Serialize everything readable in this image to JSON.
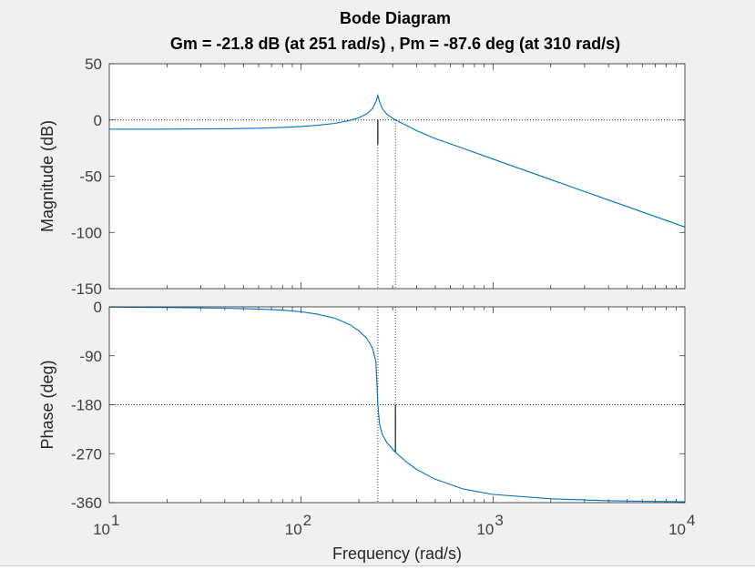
{
  "chart_data": {
    "type": "line",
    "title": "Bode Diagram",
    "subtitle": "Gm = -21.8 dB (at 251 rad/s) ,  Pm = -87.6 deg (at 310 rad/s)",
    "xlabel": "Frequency  (rad/s)",
    "xscale": "log",
    "xlim": [
      10,
      10000
    ],
    "x_ticks": [
      10,
      100,
      1000,
      10000
    ],
    "x_tick_labels": [
      {
        "base": "10",
        "exp": "1"
      },
      {
        "base": "10",
        "exp": "2"
      },
      {
        "base": "10",
        "exp": "3"
      },
      {
        "base": "10",
        "exp": "4"
      }
    ],
    "margins": {
      "gain_margin_db": -21.8,
      "gain_crossover_freq": 251,
      "phase_margin_deg": -87.6,
      "phase_crossover_freq": 310
    },
    "magnitude": {
      "ylabel": "Magnitude (dB)",
      "ylim": [
        -150,
        50
      ],
      "y_ticks": [
        50,
        0,
        -50,
        -100,
        -150
      ],
      "y_tick_labels": [
        "50",
        "0",
        "-50",
        "-100",
        "-150"
      ],
      "reference_line": 0,
      "color": "#0072BD",
      "points": [
        [
          10,
          -8.2
        ],
        [
          20,
          -8.1
        ],
        [
          40,
          -7.8
        ],
        [
          60,
          -7.3
        ],
        [
          80,
          -6.6
        ],
        [
          100,
          -5.8
        ],
        [
          120,
          -4.8
        ],
        [
          150,
          -3.0
        ],
        [
          180,
          -0.4
        ],
        [
          200,
          2.0
        ],
        [
          220,
          5.5
        ],
        [
          235,
          10.0
        ],
        [
          245,
          16.0
        ],
        [
          251,
          21.8
        ],
        [
          256,
          16.5
        ],
        [
          265,
          10.0
        ],
        [
          280,
          5.0
        ],
        [
          310,
          0.0
        ],
        [
          350,
          -4.5
        ],
        [
          400,
          -9.5
        ],
        [
          500,
          -16.5
        ],
        [
          700,
          -25.3
        ],
        [
          1000,
          -34.8
        ],
        [
          2000,
          -53.0
        ],
        [
          4000,
          -71.2
        ],
        [
          7000,
          -85.9
        ],
        [
          10000,
          -95.2
        ]
      ]
    },
    "phase": {
      "ylabel": "Phase (deg)",
      "ylim": [
        -360,
        0
      ],
      "y_ticks": [
        0,
        -90,
        -180,
        -270,
        -360
      ],
      "y_tick_labels": [
        "0",
        "-90",
        "-180",
        "-270",
        "-360"
      ],
      "reference_line": -180,
      "color": "#0072BD",
      "points": [
        [
          10,
          -0.5
        ],
        [
          20,
          -1.2
        ],
        [
          40,
          -2.5
        ],
        [
          60,
          -4.0
        ],
        [
          80,
          -6.0
        ],
        [
          100,
          -9.0
        ],
        [
          120,
          -13.0
        ],
        [
          150,
          -21.0
        ],
        [
          180,
          -33.0
        ],
        [
          200,
          -44.0
        ],
        [
          220,
          -58.0
        ],
        [
          235,
          -75.0
        ],
        [
          245,
          -100.0
        ],
        [
          251,
          -180.0
        ],
        [
          256,
          -215.0
        ],
        [
          265,
          -235.0
        ],
        [
          280,
          -250.0
        ],
        [
          310,
          -267.6
        ],
        [
          350,
          -284.0
        ],
        [
          400,
          -299.0
        ],
        [
          500,
          -317.0
        ],
        [
          700,
          -335.0
        ],
        [
          1000,
          -345.0
        ],
        [
          2000,
          -353.0
        ],
        [
          4000,
          -356.5
        ],
        [
          7000,
          -357.8
        ],
        [
          10000,
          -358.5
        ]
      ]
    }
  }
}
